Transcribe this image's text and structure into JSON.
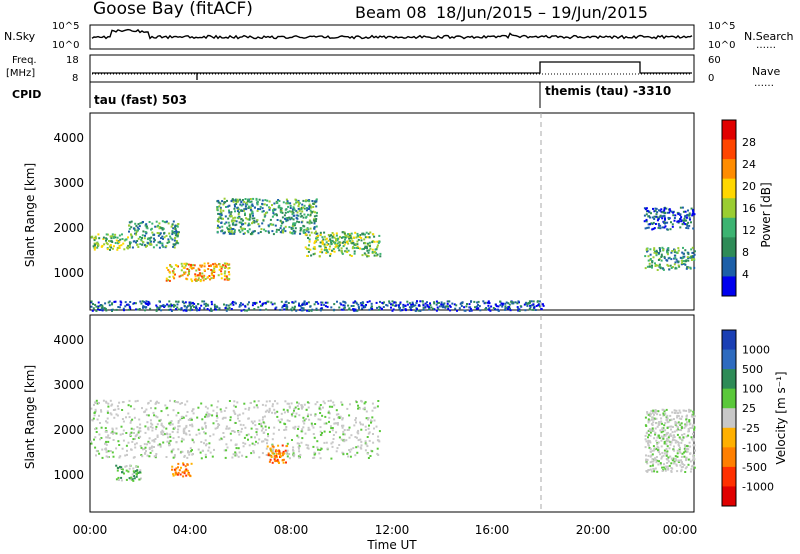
{
  "header": {
    "station": "Goose Bay (fitACF)",
    "beam": "Beam 08",
    "date_range": "18/Jun/2015 – 19/Jun/2015"
  },
  "strip_panels": {
    "nsky": {
      "label": "N.Sky",
      "tick_hi": "10^5",
      "tick_lo": "10^0",
      "right_label": "N.Search",
      "right_hi": "10^5",
      "right_lo": "10^0"
    },
    "freq": {
      "label_line1": "Freq.",
      "label_line2": "[MHz]",
      "tick_hi": "18",
      "tick_lo": "8",
      "right_label": "Nave",
      "right_hi": "60",
      "right_lo": "0"
    },
    "cpid": {
      "label": "CPID",
      "mode_1": "tau (fast) 503",
      "mode_2": "themis (tau) -3310"
    }
  },
  "axes": {
    "x_title": "Time UT",
    "x_ticks": [
      "00:00",
      "04:00",
      "08:00",
      "12:00",
      "16:00",
      "20:00",
      "00:00"
    ],
    "y_title": "Slant Range [km]",
    "y_ticks": [
      "1000",
      "2000",
      "3000",
      "4000"
    ]
  },
  "colorbars": {
    "power": {
      "title": "Power [dB]",
      "labels": [
        "28",
        "24",
        "20",
        "16",
        "12",
        "8",
        "4"
      ],
      "colors": [
        "#e00000",
        "#ff4500",
        "#ff8c00",
        "#ffd700",
        "#9acd32",
        "#3cb371",
        "#2e8b57",
        "#1c5fa8",
        "#0000ee"
      ]
    },
    "velocity": {
      "title": "Velocity [m s⁻¹]",
      "labels": [
        "1000",
        "500",
        "100",
        "25",
        "-25",
        "-100",
        "-500",
        "-1000"
      ],
      "colors": [
        "#1a3fb4",
        "#2e6bbf",
        "#2e8b57",
        "#5ac83a",
        "#c8c8c8",
        "#ffb000",
        "#ff7f00",
        "#ff3000",
        "#e00000"
      ]
    }
  },
  "chart_data": [
    {
      "type": "heatmap",
      "panel": "power",
      "title": "Goose Bay (fitACF) Beam 08 18/Jun/2015 – 19/Jun/2015",
      "xlabel": "Time UT",
      "ylabel": "Slant Range [km]",
      "xlim": [
        0,
        24
      ],
      "ylim": [
        180,
        4600
      ],
      "colorbar_label": "Power [dB]",
      "colorbar_range": [
        3,
        30
      ],
      "regions": [
        {
          "t0": 0.0,
          "t1": 1.5,
          "r0": 1550,
          "r1": 1900,
          "level": "medium-high"
        },
        {
          "t0": 1.5,
          "t1": 3.5,
          "r0": 1600,
          "r1": 2200,
          "level": "medium"
        },
        {
          "t0": 3.0,
          "t1": 5.5,
          "r0": 850,
          "r1": 1250,
          "level": "high"
        },
        {
          "t0": 5.0,
          "t1": 9.0,
          "r0": 1900,
          "r1": 2700,
          "level": "medium"
        },
        {
          "t0": 8.5,
          "t1": 11.5,
          "r0": 1400,
          "r1": 1950,
          "level": "medium-high"
        },
        {
          "t0": 0.0,
          "t1": 18.0,
          "r0": 180,
          "r1": 400,
          "level": "low"
        },
        {
          "t0": 22.0,
          "t1": 24.0,
          "r0": 1100,
          "r1": 1600,
          "level": "medium"
        },
        {
          "t0": 22.0,
          "t1": 24.0,
          "r0": 2000,
          "r1": 2500,
          "level": "low"
        }
      ]
    },
    {
      "type": "heatmap",
      "panel": "velocity",
      "xlabel": "Time UT",
      "ylabel": "Slant Range [km]",
      "xlim": [
        0,
        24
      ],
      "ylim": [
        180,
        4600
      ],
      "colorbar_label": "Velocity [m s⁻¹]",
      "colorbar_range": [
        -1000,
        1000
      ],
      "regions": [
        {
          "t0": 0.0,
          "t1": 11.5,
          "r0": 1400,
          "r1": 2700,
          "level": "near-zero"
        },
        {
          "t0": 1.0,
          "t1": 2.0,
          "r0": 900,
          "r1": 1250,
          "level": "positive"
        },
        {
          "t0": 7.0,
          "t1": 7.8,
          "r0": 1300,
          "r1": 1700,
          "level": "negative"
        },
        {
          "t0": 3.2,
          "t1": 4.0,
          "r0": 1000,
          "r1": 1300,
          "level": "negative"
        },
        {
          "t0": 22.0,
          "t1": 24.0,
          "r0": 1100,
          "r1": 2500,
          "level": "near-zero"
        }
      ]
    }
  ]
}
